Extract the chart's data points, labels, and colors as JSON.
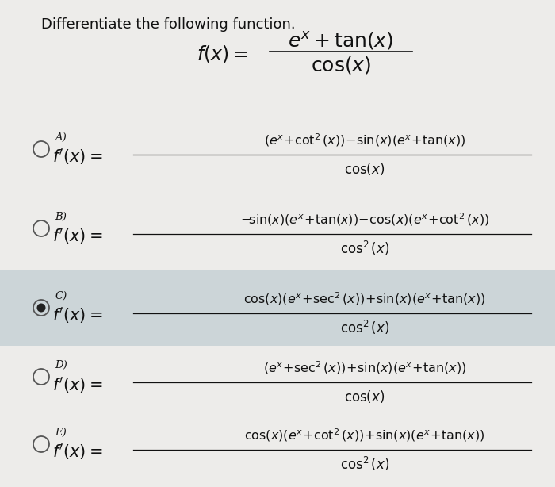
{
  "title": "Differentiate the following function.",
  "background_color": "#edecea",
  "highlight_color": "#ccd5d8",
  "text_color": "#111111",
  "options": [
    {
      "label": "A",
      "selected": false,
      "num": "$(e^{x}\\!+\\!\\cot^{2}(x))\\!-\\!\\sin(x)(e^{x}\\!+\\!\\tan(x))$",
      "den": "$\\cos(x)$"
    },
    {
      "label": "B",
      "selected": false,
      "num": "$-\\!\\sin(x)(e^{x}\\!+\\!\\tan(x))\\!-\\!\\cos(x)(e^{x}\\!+\\!\\cot^{2}(x))$",
      "den": "$\\cos^{2}(x)$"
    },
    {
      "label": "C",
      "selected": true,
      "num": "$\\cos(x)(e^{x}\\!+\\!\\sec^{2}(x))\\!+\\!\\sin(x)(e^{x}\\!+\\!\\tan(x))$",
      "den": "$\\cos^{2}(x)$"
    },
    {
      "label": "D",
      "selected": false,
      "num": "$(e^{x}\\!+\\!\\sec^{2}(x))\\!+\\!\\sin(x)(e^{x}\\!+\\!\\tan(x))$",
      "den": "$\\cos(x)$"
    },
    {
      "label": "E",
      "selected": false,
      "num": "$\\cos(x)(e^{x}\\!+\\!\\cot^{2}(x))\\!+\\!\\sin(x)(e^{x}\\!+\\!\\tan(x))$",
      "den": "$\\cos^{2}(x)$"
    }
  ]
}
